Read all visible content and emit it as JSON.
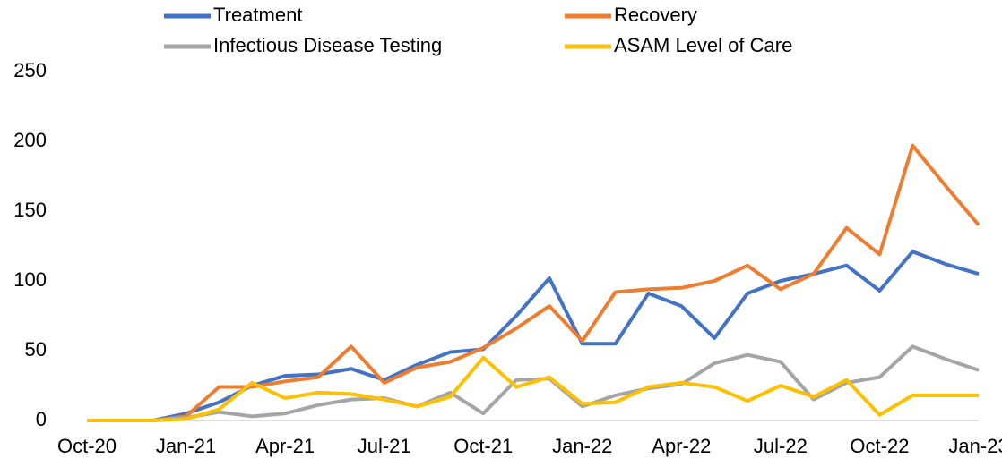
{
  "chart_data": {
    "type": "line",
    "categories": [
      "Oct-20",
      null,
      null,
      "Jan-21",
      null,
      null,
      "Apr-21",
      null,
      null,
      "Jul-21",
      null,
      null,
      "Oct-21",
      null,
      null,
      "Jan-22",
      null,
      null,
      "Apr-22",
      null,
      null,
      "Jul-22",
      null,
      null,
      "Oct-22",
      null,
      null,
      "Jan-23"
    ],
    "series": [
      {
        "name": "Treatment",
        "color": "#4472c4",
        "values": [
          0,
          0,
          0,
          5,
          13,
          25,
          32,
          33,
          37,
          29,
          40,
          49,
          51,
          75,
          102,
          55,
          55,
          91,
          82,
          59,
          91,
          100,
          105,
          111,
          93,
          121,
          112,
          105
        ]
      },
      {
        "name": "Recovery",
        "color": "#ed7d31",
        "values": [
          0,
          0,
          0,
          3,
          24,
          24,
          28,
          31,
          53,
          27,
          38,
          42,
          52,
          66,
          82,
          57,
          92,
          94,
          95,
          100,
          111,
          94,
          105,
          138,
          119,
          197,
          168,
          140
        ]
      },
      {
        "name": "Infectious Disease Testing",
        "color": "#a5a5a5",
        "values": [
          0,
          0,
          0,
          2,
          6,
          3,
          5,
          11,
          15,
          16,
          10,
          20,
          5,
          29,
          30,
          10,
          18,
          23,
          26,
          41,
          47,
          42,
          15,
          27,
          31,
          53,
          44,
          36
        ]
      },
      {
        "name": "ASAM Level of Care",
        "color": "#ffc000",
        "values": [
          0,
          0,
          0,
          1,
          8,
          27,
          16,
          20,
          19,
          15,
          10,
          17,
          45,
          24,
          31,
          12,
          13,
          24,
          27,
          24,
          14,
          25,
          17,
          29,
          4,
          18,
          18,
          18
        ]
      }
    ],
    "ylim": [
      0,
      250
    ],
    "yticks": [
      0,
      50,
      100,
      150,
      200,
      250
    ],
    "grid": false
  }
}
